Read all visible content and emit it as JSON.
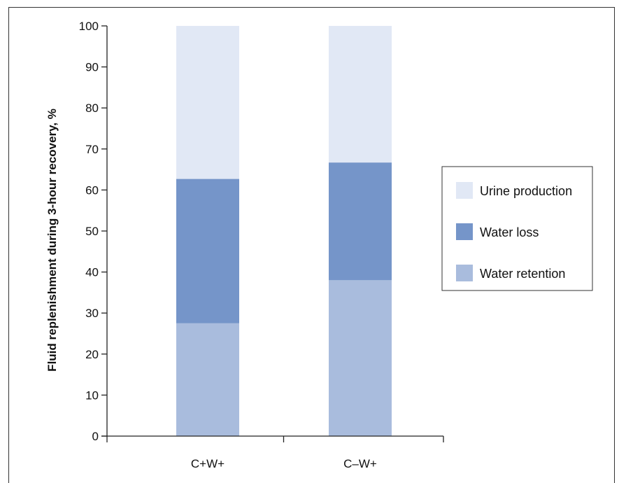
{
  "chart_data": {
    "type": "bar",
    "stacked": true,
    "categories": [
      "C+W+",
      "C–W+"
    ],
    "series": [
      {
        "name": "Water retention",
        "values": [
          27.5,
          38
        ],
        "color": "#a9bcdd"
      },
      {
        "name": "Water loss",
        "values": [
          35.2,
          28.7
        ],
        "color": "#7595c9"
      },
      {
        "name": "Urine production",
        "values": [
          37.3,
          33.3
        ],
        "color": "#e1e8f5"
      }
    ],
    "ylabel": "Fluid replenishment during 3-hour recovery, %",
    "ylim": [
      0,
      100
    ],
    "yticks": [
      0,
      10,
      20,
      30,
      40,
      50,
      60,
      70,
      80,
      90,
      100
    ],
    "grid": false,
    "legend": {
      "position": "right",
      "order": [
        "Urine production",
        "Water loss",
        "Water retention"
      ]
    }
  }
}
